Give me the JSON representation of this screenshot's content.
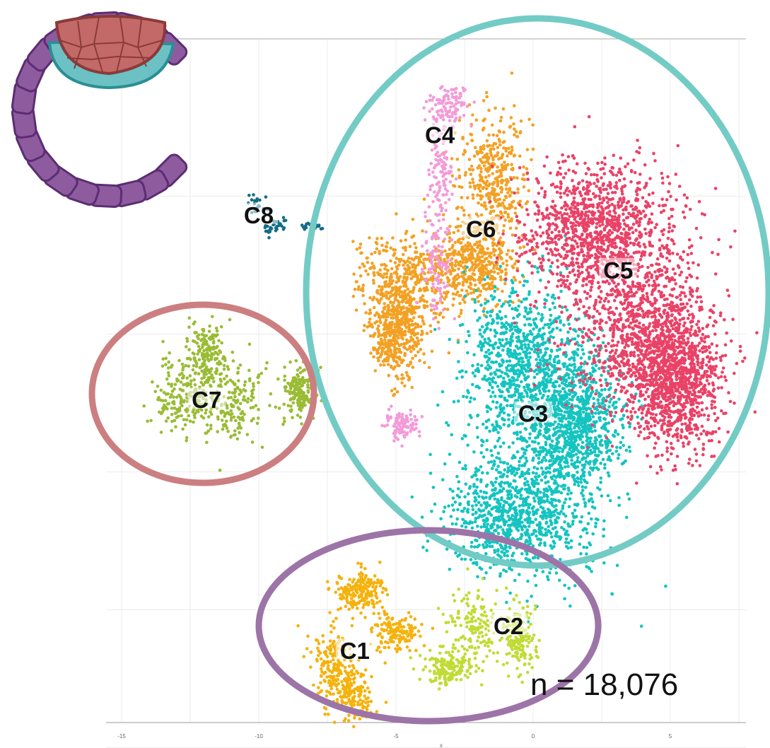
{
  "chart_data": {
    "type": "scatter",
    "title": "",
    "xlabel": "x",
    "ylabel": "",
    "xlim": [
      -15.2,
      7.6
    ],
    "ylim": [
      -14.3,
      12.6
    ],
    "x_ticks": [
      -15,
      -10,
      -5,
      0,
      5
    ],
    "x_tick_labels": [
      "-15",
      "-10",
      "-5",
      "0",
      "5"
    ],
    "y_ticks": [
      -12.5,
      -7.5,
      -2.5,
      2.5,
      7.5
    ],
    "grid": true,
    "legend": "none",
    "annotation": "n = 18,076",
    "clusters": [
      {
        "name": "C1",
        "color": "#f5b20c",
        "centroid": [
          -6.5,
          -9.5
        ],
        "approx_spread": [
          1.0,
          1.6
        ]
      },
      {
        "name": "C2",
        "color": "#c0dc35",
        "centroid": [
          -0.7,
          -9.0
        ],
        "approx_spread": [
          0.6,
          0.9
        ]
      },
      {
        "name": "C3",
        "color": "#14c4c0",
        "centroid": [
          0.0,
          -0.6
        ],
        "approx_spread": [
          2.5,
          4.0
        ]
      },
      {
        "name": "C4",
        "color": "#f49ad8",
        "centroid": [
          -3.1,
          9.6
        ],
        "approx_spread": [
          0.7,
          0.9
        ]
      },
      {
        "name": "C5",
        "color": "#ea4267",
        "centroid": [
          3.1,
          4.3
        ],
        "approx_spread": [
          2.5,
          3.0
        ]
      },
      {
        "name": "C6",
        "color": "#f3a124",
        "centroid": [
          -2.0,
          5.2
        ],
        "approx_spread": [
          1.6,
          2.4
        ]
      },
      {
        "name": "C7",
        "color": "#9abc34",
        "centroid": [
          -12.0,
          0.3
        ],
        "approx_spread": [
          1.3,
          1.4
        ]
      },
      {
        "name": "C8",
        "color": "#136c86",
        "centroid": [
          -10.0,
          6.5
        ],
        "approx_spread": [
          0.4,
          0.4
        ]
      }
    ],
    "groupings": [
      {
        "name": "teal-ring",
        "color": "#73cbc5",
        "members": [
          "C3",
          "C4",
          "C5",
          "C6"
        ]
      },
      {
        "name": "rose-ring",
        "color": "#cc7f80",
        "members": [
          "C7"
        ]
      },
      {
        "name": "purple-ring",
        "color": "#9d74a8",
        "members": [
          "C1",
          "C2"
        ]
      }
    ]
  },
  "inset": {
    "icon": "embryo-blastocyst-icon",
    "colors": {
      "trophectoderm": "#8e5b9e",
      "primitive_endoderm": "#6bc1c3",
      "epiblast": "#c36a68"
    }
  },
  "colors": {
    "grid": "#ececec",
    "axis": "#999999"
  }
}
